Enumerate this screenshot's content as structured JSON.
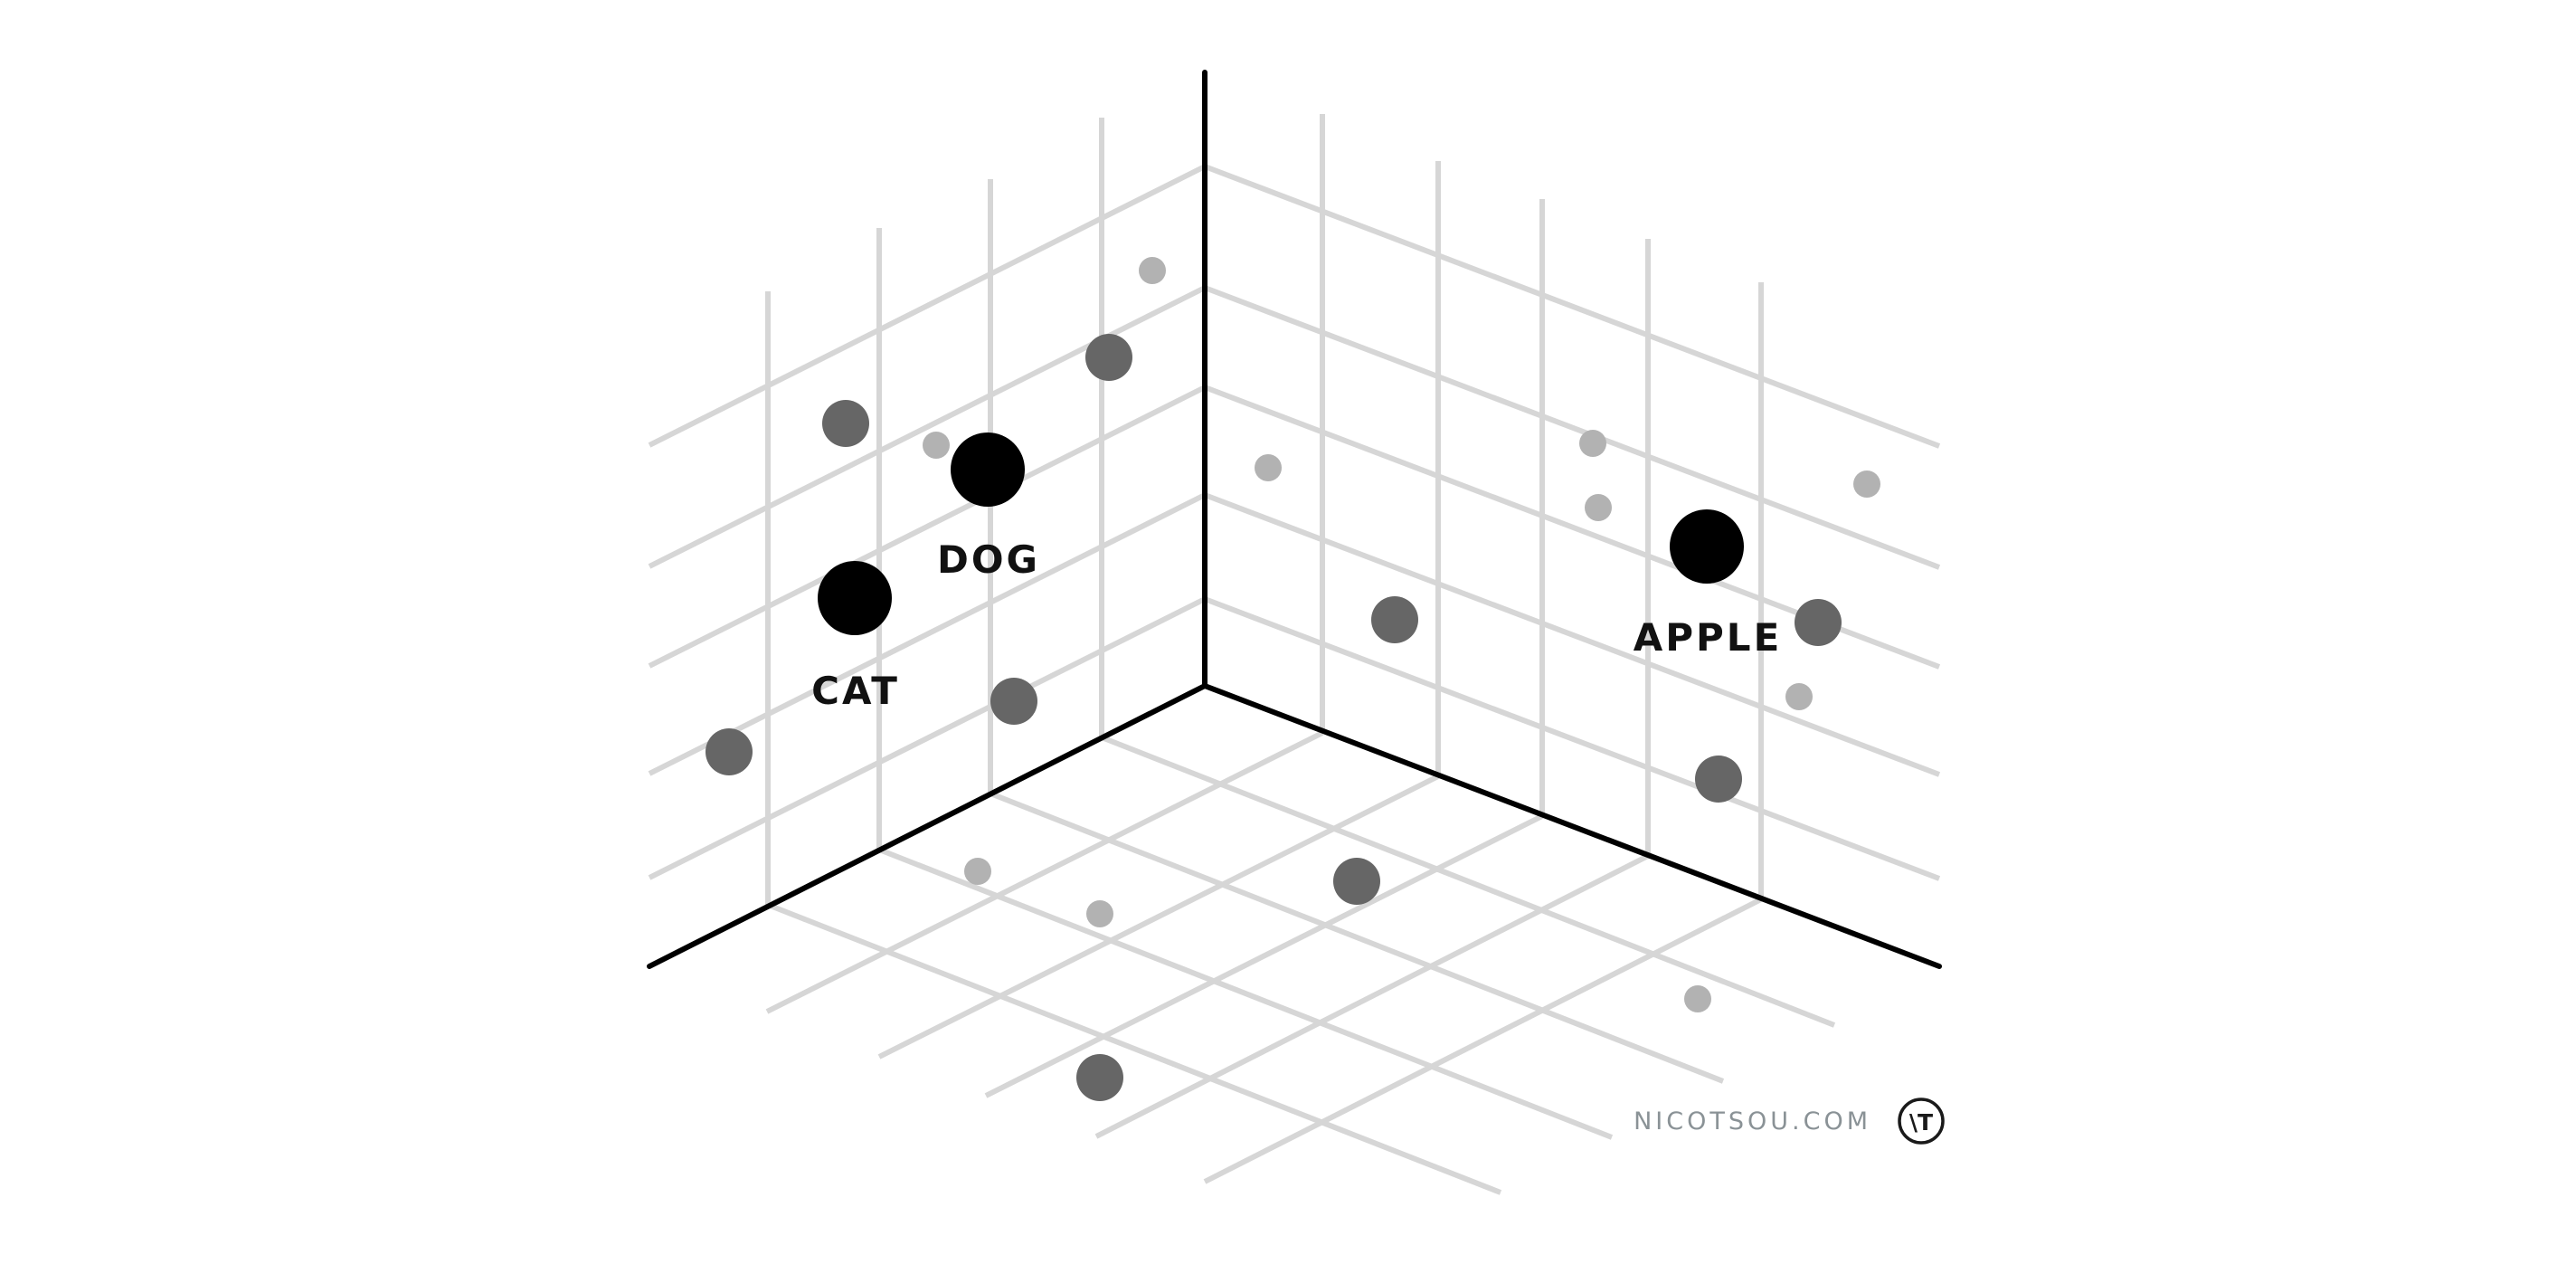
{
  "labels": {
    "cat": "CAT",
    "dog": "DOG",
    "apple": "APPLE"
  },
  "watermark": {
    "site": "NICOTSOU.COM",
    "logo_mark": "\\T"
  },
  "icons": {
    "logo": "nicotsou-logo-icon"
  },
  "colors": {
    "highlight_point": "#000000",
    "mid_point": "#666666",
    "far_point": "#b2b2b2",
    "grid": "#d6d6d6",
    "axis": "#000000"
  }
}
